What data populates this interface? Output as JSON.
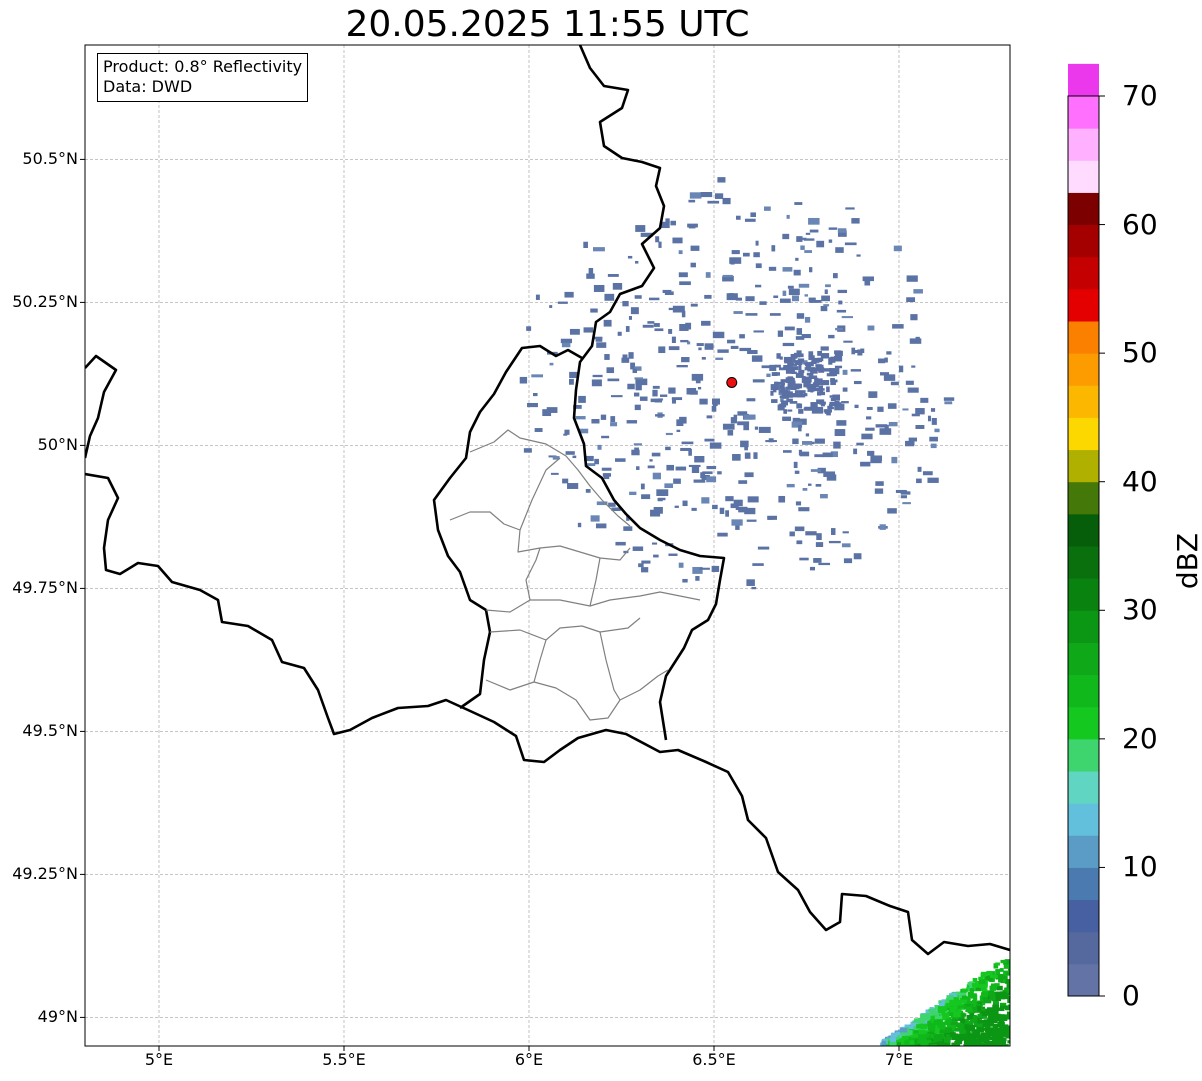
{
  "title": "20.05.2025 11:55 UTC",
  "info": {
    "product": "Product: 0.8° Reflectivity",
    "data": "Data: DWD"
  },
  "lat_labels": [
    "50.5°N",
    "50.25°N",
    "50°N",
    "49.75°N",
    "49.5°N",
    "49.25°N",
    "49°N"
  ],
  "lat_values": [
    50.5,
    50.25,
    50.0,
    49.75,
    49.5,
    49.25,
    49.0
  ],
  "lon_labels": [
    "5°E",
    "5.5°E",
    "6°E",
    "6.5°E",
    "7°E"
  ],
  "lon_values": [
    5.0,
    5.5,
    6.0,
    6.5,
    7.0
  ],
  "colorbar": {
    "label": "dBZ",
    "tick_labels": [
      "0",
      "10",
      "20",
      "30",
      "40",
      "50",
      "60",
      "70"
    ],
    "tick_values": [
      0,
      10,
      20,
      30,
      40,
      50,
      60,
      70
    ],
    "range": [
      0,
      70
    ],
    "step": 2.5,
    "colors": [
      "#6473a6",
      "#56699e",
      "#4660a2",
      "#4a7ab0",
      "#5a9cc6",
      "#63c0dc",
      "#60d6c2",
      "#3ed46e",
      "#14c820",
      "#10b81c",
      "#0fa818",
      "#0b9614",
      "#0a8210",
      "#0a700e",
      "#075e0a",
      "#447808",
      "#b0b000",
      "#fcd800",
      "#fcb800",
      "#fc9c00",
      "#fc8000",
      "#e40000",
      "#c40000",
      "#a40000",
      "#7c0000",
      "#ffdcff",
      "#ffb0ff",
      "#ff70ff",
      "#ec38ec"
    ]
  },
  "map": {
    "extent": {
      "lon_min": 4.8,
      "lon_max": 7.3,
      "lat_min": 48.95,
      "lat_max": 50.7
    },
    "radar_site": {
      "lon": 6.548,
      "lat": 50.11
    }
  }
}
